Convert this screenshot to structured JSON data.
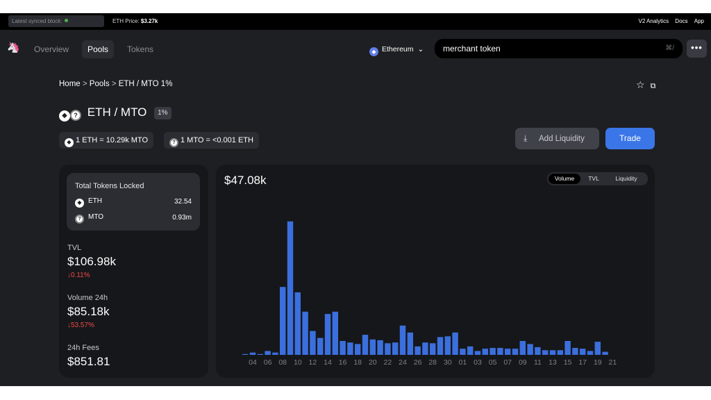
{
  "topbar": {
    "sync_label": "Latest synced block:",
    "price_label": "ETH Price:",
    "price_value": "$3.27k",
    "links": [
      "V2 Analytics",
      "Docs",
      "App"
    ]
  },
  "nav": {
    "tabs": [
      "Overview",
      "Pools",
      "Tokens"
    ],
    "active_tab": "Pools",
    "chain": "Ethereum",
    "search_value": "merchant token",
    "search_shortcut": "⌘/",
    "more_label": "•••"
  },
  "breadcrumb": {
    "home": "Home",
    "pools": "Pools",
    "current": "ETH / MTO 1%"
  },
  "pool": {
    "pair": "ETH / MTO",
    "fee": "1%",
    "rate_eth": "1 ETH = 10.29k MTO",
    "rate_mto": "1 MTO = <0.001 ETH"
  },
  "actions": {
    "add_liquidity": "Add Liquidity",
    "trade": "Trade"
  },
  "locked": {
    "title": "Total Tokens Locked",
    "tokens": [
      {
        "symbol": "ETH",
        "amount": "32.54"
      },
      {
        "symbol": "MTO",
        "amount": "0.93m"
      }
    ]
  },
  "stats": {
    "tvl": {
      "label": "TVL",
      "value": "$106.98k",
      "change": "↓0.11%"
    },
    "volume": {
      "label": "Volume 24h",
      "value": "$85.18k",
      "change": "↓53.57%"
    },
    "fees": {
      "label": "24h Fees",
      "value": "$851.81"
    }
  },
  "chart_toggle": [
    "Volume",
    "TVL",
    "Liquidity"
  ],
  "chart_active": "Volume",
  "colors": {
    "accent": "#3b76e8",
    "bar": "#3b6fdd",
    "negative": "#f04a48",
    "bg": "#1e1f22",
    "card": "#16171a"
  },
  "chart_data": {
    "type": "bar",
    "title": "$47.08k",
    "tick_labels": [
      "04",
      "06",
      "08",
      "10",
      "12",
      "14",
      "16",
      "18",
      "20",
      "22",
      "24",
      "26",
      "28",
      "30",
      "01",
      "03",
      "05",
      "07",
      "09",
      "11",
      "13",
      "15",
      "17",
      "19",
      "21"
    ],
    "values": [
      0.1,
      0.3,
      0.1,
      0.5,
      0.3,
      8.8,
      17.3,
      8.1,
      5.6,
      3.1,
      2.2,
      5.3,
      5.6,
      1.8,
      1.6,
      1.4,
      2.6,
      2.0,
      1.9,
      1.5,
      1.6,
      3.8,
      2.9,
      1.1,
      1.6,
      1.5,
      2.3,
      2.4,
      2.9,
      0.8,
      1.1,
      0.5,
      0.8,
      0.9,
      0.9,
      0.8,
      0.8,
      1.8,
      1.4,
      1.0,
      0.6,
      0.6,
      0.6,
      1.8,
      0.9,
      0.8,
      0.5,
      1.7,
      0.4
    ],
    "ylim": [
      0,
      18
    ]
  }
}
